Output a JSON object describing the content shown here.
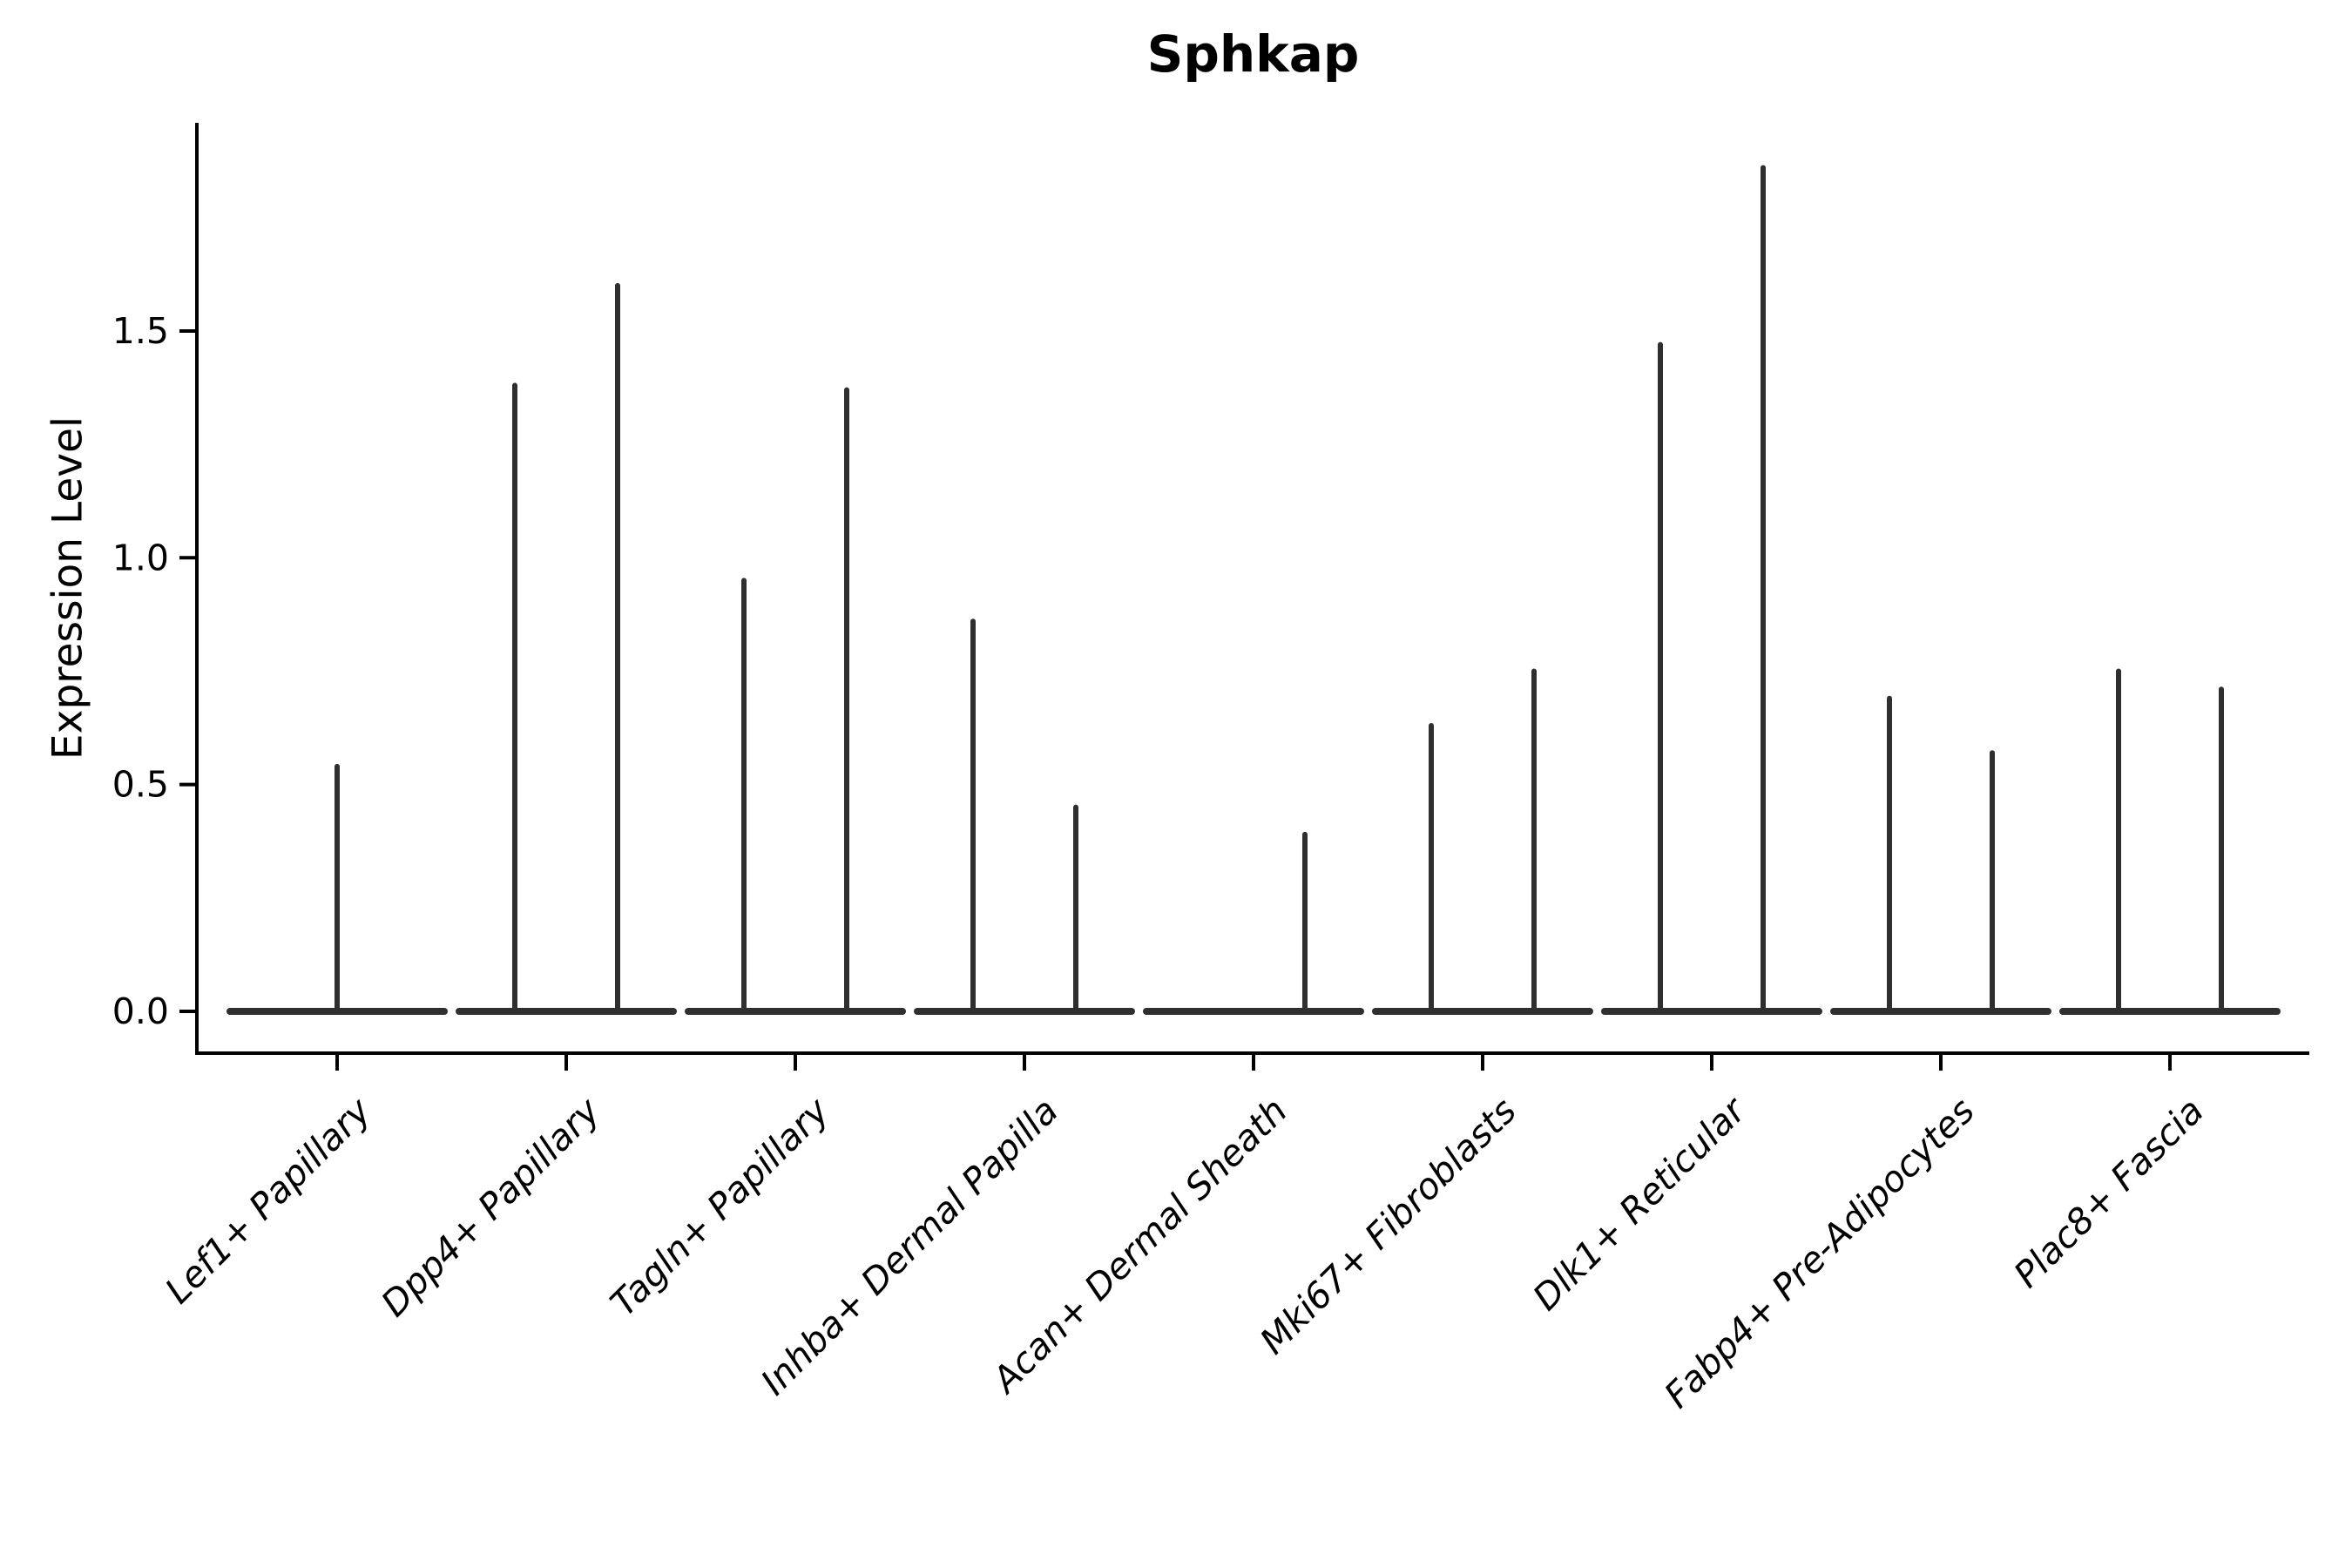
{
  "chart_data": {
    "type": "violin",
    "title": "Sphkap",
    "ylabel": "Expression Level",
    "xlabel": "",
    "legend": "none",
    "grid": false,
    "ylim": [
      -0.09,
      1.95
    ],
    "yticks": [
      0.0,
      0.5,
      1.0,
      1.5
    ],
    "ytick_labels": [
      "0.0",
      "0.5",
      "1.0",
      "1.5"
    ],
    "categories": [
      "Lef1+ Papillary",
      "Dpp4+ Papillary",
      "Tagln+ Papillary",
      "Inhba+ Dermal Papilla",
      "Acan+ Dermal Sheath",
      "Mki67+ Fibroblasts",
      "Dlk1+ Reticular",
      "Fabp4+ Pre-Adipocytes",
      "Plac8+ Fascia"
    ],
    "violins": [
      {
        "category": "Lef1+ Papillary",
        "spikes": [
          {
            "pos": "center",
            "max": 0.54
          }
        ]
      },
      {
        "category": "Dpp4+ Papillary",
        "spikes": [
          {
            "pos": "left",
            "max": 1.38
          },
          {
            "pos": "right",
            "max": 1.6
          }
        ]
      },
      {
        "category": "Tagln+ Papillary",
        "spikes": [
          {
            "pos": "left",
            "max": 0.95
          },
          {
            "pos": "right",
            "max": 1.37
          }
        ]
      },
      {
        "category": "Inhba+ Dermal Papilla",
        "spikes": [
          {
            "pos": "left",
            "max": 0.86
          },
          {
            "pos": "right",
            "max": 0.45
          }
        ]
      },
      {
        "category": "Acan+ Dermal Sheath",
        "spikes": [
          {
            "pos": "left",
            "max": 0.0
          },
          {
            "pos": "right",
            "max": 0.39
          }
        ]
      },
      {
        "category": "Mki67+ Fibroblasts",
        "spikes": [
          {
            "pos": "left",
            "max": 0.63
          },
          {
            "pos": "right",
            "max": 0.75
          }
        ]
      },
      {
        "category": "Dlk1+ Reticular",
        "spikes": [
          {
            "pos": "left",
            "max": 1.47
          },
          {
            "pos": "right",
            "max": 1.86
          }
        ]
      },
      {
        "category": "Fabp4+ Pre-Adipocytes",
        "spikes": [
          {
            "pos": "left",
            "max": 0.69
          },
          {
            "pos": "right",
            "max": 0.57
          }
        ]
      },
      {
        "category": "Plac8+ Fascia",
        "spikes": [
          {
            "pos": "left",
            "max": 0.75
          },
          {
            "pos": "right",
            "max": 0.71
          }
        ]
      }
    ],
    "colors": {
      "violin_outline": "#2f2f2f",
      "axis": "#000000",
      "background": "#ffffff"
    }
  }
}
